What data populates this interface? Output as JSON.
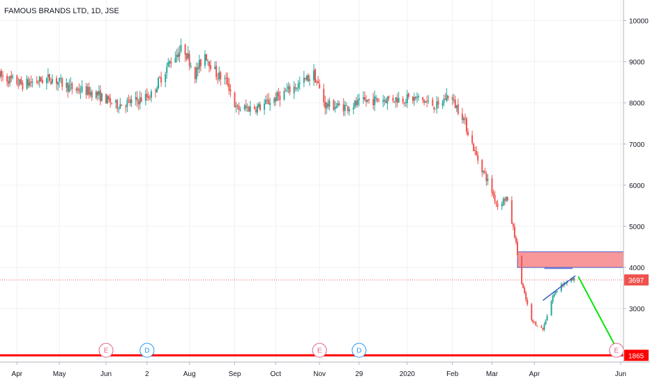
{
  "header": {
    "title": "FAMOUS BRANDS LTD, 1D, JSE"
  },
  "colors": {
    "up": "#26a69a",
    "down": "#ef5350",
    "grid": "#eef0f3",
    "axis_text": "#131722",
    "current_price": "#ef5350",
    "support_line": "#ff0000",
    "resistance_zone": "#f7868a",
    "projection_arrow": "#00e600",
    "triangle_top": "#6a7fd6",
    "triangle_bottom": "#3a63c7",
    "earnings_marker": "#e06080",
    "dividend_marker": "#2196f3"
  },
  "chart_data": {
    "type": "candlestick",
    "title": "FAMOUS BRANDS LTD, 1D, JSE",
    "symbol": "FAMOUS BRANDS LTD",
    "interval": "1D",
    "exchange": "JSE",
    "x_axis": {
      "start": "2019-03-20",
      "end": "2020-06-03",
      "tick_labels": [
        {
          "date": "2019-04-01",
          "label": "Apr"
        },
        {
          "date": "2019-05-01",
          "label": "May"
        },
        {
          "date": "2019-06-03",
          "label": "Jun"
        },
        {
          "date": "2019-07-02",
          "label": "2"
        },
        {
          "date": "2019-08-01",
          "label": "Aug"
        },
        {
          "date": "2019-09-02",
          "label": "Sep"
        },
        {
          "date": "2019-10-01",
          "label": "Oct"
        },
        {
          "date": "2019-11-01",
          "label": "Nov"
        },
        {
          "date": "2019-11-29",
          "label": "29"
        },
        {
          "date": "2020-01-02",
          "label": "2020"
        },
        {
          "date": "2020-02-03",
          "label": "Feb"
        },
        {
          "date": "2020-03-02",
          "label": "Mar"
        },
        {
          "date": "2020-04-01",
          "label": "Apr"
        },
        {
          "date": "2020-06-01",
          "label": "Jun"
        }
      ]
    },
    "y_axis": {
      "ylim": [
        1700,
        10500
      ],
      "tick_values": [
        3000,
        4000,
        5000,
        6000,
        7000,
        8000,
        9000,
        10000
      ]
    },
    "grid": true,
    "price_path": [
      [
        "2019-03-20",
        8650
      ],
      [
        "2019-04-05",
        8450
      ],
      [
        "2019-04-25",
        8600
      ],
      [
        "2019-05-10",
        8350
      ],
      [
        "2019-05-25",
        8250
      ],
      [
        "2019-06-10",
        7950
      ],
      [
        "2019-06-25",
        8050
      ],
      [
        "2019-07-05",
        8200
      ],
      [
        "2019-07-20",
        9100
      ],
      [
        "2019-07-28",
        9350
      ],
      [
        "2019-08-05",
        8700
      ],
      [
        "2019-08-12",
        9200
      ],
      [
        "2019-08-20",
        8700
      ],
      [
        "2019-08-28",
        8500
      ],
      [
        "2019-09-03",
        7850
      ],
      [
        "2019-09-20",
        7900
      ],
      [
        "2019-10-05",
        8200
      ],
      [
        "2019-10-20",
        8500
      ],
      [
        "2019-10-28",
        8700
      ],
      [
        "2019-11-05",
        7950
      ],
      [
        "2019-11-20",
        7900
      ],
      [
        "2019-12-05",
        8050
      ],
      [
        "2019-12-20",
        8100
      ],
      [
        "2020-01-10",
        8100
      ],
      [
        "2020-01-24",
        7900
      ],
      [
        "2020-01-31",
        8200
      ],
      [
        "2020-02-10",
        7700
      ],
      [
        "2020-02-20",
        6700
      ],
      [
        "2020-02-28",
        6100
      ],
      [
        "2020-03-06",
        5500
      ],
      [
        "2020-03-12",
        5700
      ],
      [
        "2020-03-18",
        4800
      ],
      [
        "2020-03-23",
        3600
      ],
      [
        "2020-03-30",
        2700
      ],
      [
        "2020-04-07",
        2500
      ],
      [
        "2020-04-14",
        3300
      ],
      [
        "2020-04-20",
        3600
      ],
      [
        "2020-04-29",
        3700
      ]
    ],
    "current_price": {
      "value": 3697,
      "label": "3697"
    },
    "support_line": {
      "value": 1865,
      "label": "1865"
    },
    "resistance_zone": {
      "from": 4000,
      "to": 4380,
      "start": "2020-03-20",
      "end": "2020-06-03"
    },
    "triangle": {
      "top": [
        [
          "2020-04-08",
          3980
        ],
        [
          "2020-04-28",
          3980
        ]
      ],
      "bottom": [
        [
          "2020-04-07",
          3200
        ],
        [
          "2020-04-30",
          3800
        ]
      ]
    },
    "projection_arrow": {
      "from": [
        "2020-05-02",
        3780
      ],
      "to": [
        "2020-05-31",
        1910
      ]
    },
    "events": [
      {
        "type": "earnings",
        "label": "E",
        "date": "2019-06-03"
      },
      {
        "type": "dividend",
        "label": "D",
        "date": "2019-07-02"
      },
      {
        "type": "earnings",
        "label": "E",
        "date": "2019-11-01"
      },
      {
        "type": "dividend",
        "label": "D",
        "date": "2019-11-29"
      },
      {
        "type": "earnings",
        "label": "E",
        "date": "2020-05-29"
      }
    ]
  }
}
